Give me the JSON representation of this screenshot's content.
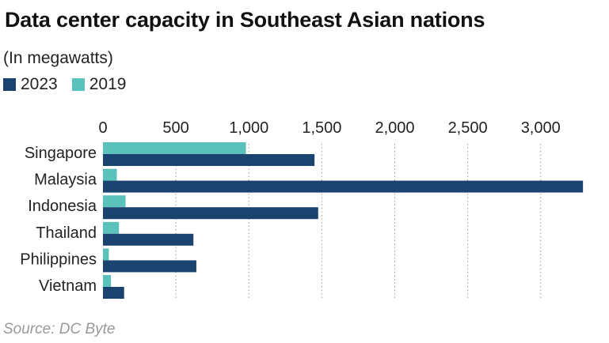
{
  "title": "Data center capacity in Southeast Asian nations",
  "subtitle": "(In megawatts)",
  "source": "Source: DC Byte",
  "colors": {
    "2023": "#1b4370",
    "2019": "#5bc2bb",
    "grid": "#9a9a9a",
    "text": "#222222"
  },
  "chart_data": {
    "type": "bar",
    "orientation": "horizontal",
    "title": "Data center capacity in Southeast Asian nations",
    "subtitle": "(In megawatts)",
    "xlabel": "",
    "ylabel": "",
    "xlim": [
      0,
      3300
    ],
    "ticks": [
      {
        "value": 0,
        "label": "0"
      },
      {
        "value": 500,
        "label": "500"
      },
      {
        "value": 1000,
        "label": "1,000"
      },
      {
        "value": 1500,
        "label": "1,500"
      },
      {
        "value": 2000,
        "label": "2,000"
      },
      {
        "value": 2500,
        "label": "2,500"
      },
      {
        "value": 3000,
        "label": "3,000"
      }
    ],
    "grid": true,
    "legend_position": "top-left",
    "categories": [
      "Singapore",
      "Malaysia",
      "Indonesia",
      "Thailand",
      "Philippines",
      "Vietnam"
    ],
    "series": [
      {
        "name": "2023",
        "values": [
          1450,
          3290,
          1475,
          620,
          640,
          145
        ]
      },
      {
        "name": "2019",
        "values": [
          980,
          95,
          155,
          110,
          40,
          55
        ]
      }
    ]
  }
}
